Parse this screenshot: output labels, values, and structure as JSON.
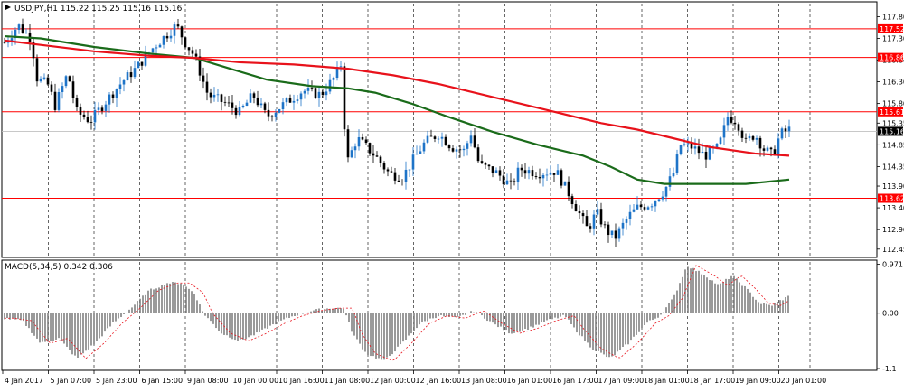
{
  "header": {
    "symbol_line": "USDJPY,H1  115.22 115.25 115.16 115.16"
  },
  "macd_label": "MACD(5,34,5) 0.342 0.306",
  "chart_data": [
    {
      "type": "candlestick",
      "symbol": "USDJPY",
      "timeframe": "H1",
      "ohlc_last": {
        "open": 115.22,
        "high": 115.25,
        "low": 115.16,
        "close": 115.16
      },
      "ylim": [
        112.3,
        118.1
      ],
      "y_ticks": [
        "117.80",
        "117.30",
        "116.80",
        "116.30",
        "115.80",
        "115.35",
        "114.85",
        "114.35",
        "113.90",
        "113.40",
        "112.90",
        "112.45"
      ],
      "price_levels": [
        {
          "value": 117.52,
          "label": "117.52",
          "color": "#ff0000"
        },
        {
          "value": 116.86,
          "label": "116.86",
          "color": "#ff0000"
        },
        {
          "value": 115.61,
          "label": "115.61",
          "color": "#ff0000"
        },
        {
          "value": 113.62,
          "label": "113.62",
          "color": "#ff0000"
        }
      ],
      "current_price": {
        "value": 115.16,
        "label": "115.16"
      },
      "x_labels": [
        "4 Jan 2017",
        "5 Jan 07:00",
        "5 Jan 23:00",
        "6 Jan 15:00",
        "9 Jan 08:00",
        "10 Jan 00:00",
        "10 Jan 16:00",
        "11 Jan 08:00",
        "12 Jan 00:00",
        "12 Jan 16:00",
        "13 Jan 08:00",
        "16 Jan 01:00",
        "16 Jan 17:00",
        "17 Jan 09:00",
        "18 Jan 01:00",
        "18 Jan 17:00",
        "19 Jan 09:00",
        "20 Jan 01:00"
      ],
      "price_path": [
        [
          0,
          117.2
        ],
        [
          15,
          117.6
        ],
        [
          30,
          117.3
        ],
        [
          35,
          116.4
        ],
        [
          50,
          116.2
        ],
        [
          55,
          115.7
        ],
        [
          70,
          116.5
        ],
        [
          80,
          115.6
        ],
        [
          95,
          115.4
        ],
        [
          110,
          115.8
        ],
        [
          130,
          116.3
        ],
        [
          145,
          116.6
        ],
        [
          165,
          117.1
        ],
        [
          190,
          117.6
        ],
        [
          200,
          117.2
        ],
        [
          210,
          116.9
        ],
        [
          225,
          116.0
        ],
        [
          245,
          115.8
        ],
        [
          260,
          115.6
        ],
        [
          275,
          116.0
        ],
        [
          290,
          115.5
        ],
        [
          310,
          115.8
        ],
        [
          330,
          116.1
        ],
        [
          350,
          116.0
        ],
        [
          365,
          116.4
        ],
        [
          372,
          116.7
        ],
        [
          375,
          115.5
        ],
        [
          380,
          114.5
        ],
        [
          390,
          115.0
        ],
        [
          410,
          114.6
        ],
        [
          425,
          114.2
        ],
        [
          440,
          114.1
        ],
        [
          455,
          114.6
        ],
        [
          465,
          114.9
        ],
        [
          480,
          115.1
        ],
        [
          495,
          114.8
        ],
        [
          510,
          114.7
        ],
        [
          515,
          115.2
        ],
        [
          525,
          114.4
        ],
        [
          545,
          114.2
        ],
        [
          560,
          113.9
        ],
        [
          570,
          114.3
        ],
        [
          590,
          114.2
        ],
        [
          610,
          114.25
        ],
        [
          625,
          113.7
        ],
        [
          635,
          113.3
        ],
        [
          645,
          112.9
        ],
        [
          655,
          113.3
        ],
        [
          665,
          112.9
        ],
        [
          675,
          112.7
        ],
        [
          690,
          113.2
        ],
        [
          700,
          113.4
        ],
        [
          715,
          113.5
        ],
        [
          730,
          113.8
        ],
        [
          740,
          114.2
        ],
        [
          748,
          114.85
        ],
        [
          760,
          114.8
        ],
        [
          775,
          114.6
        ],
        [
          790,
          114.8
        ],
        [
          800,
          115.5
        ],
        [
          810,
          115.4
        ],
        [
          820,
          114.9
        ],
        [
          830,
          115.1
        ],
        [
          840,
          114.75
        ],
        [
          850,
          114.6
        ],
        [
          858,
          115.1
        ],
        [
          868,
          115.2
        ]
      ],
      "ma_red_path": [
        [
          0,
          117.25
        ],
        [
          40,
          117.15
        ],
        [
          100,
          117.0
        ],
        [
          160,
          116.9
        ],
        [
          210,
          116.85
        ],
        [
          260,
          116.75
        ],
        [
          320,
          116.7
        ],
        [
          380,
          116.6
        ],
        [
          430,
          116.45
        ],
        [
          480,
          116.25
        ],
        [
          540,
          115.95
        ],
        [
          600,
          115.65
        ],
        [
          660,
          115.35
        ],
        [
          700,
          115.2
        ],
        [
          740,
          115.0
        ],
        [
          780,
          114.8
        ],
        [
          830,
          114.65
        ],
        [
          868,
          114.6
        ]
      ],
      "ma_green_path": [
        [
          0,
          117.35
        ],
        [
          40,
          117.3
        ],
        [
          100,
          117.1
        ],
        [
          160,
          116.95
        ],
        [
          210,
          116.85
        ],
        [
          250,
          116.6
        ],
        [
          290,
          116.35
        ],
        [
          340,
          116.2
        ],
        [
          380,
          116.15
        ],
        [
          410,
          116.05
        ],
        [
          450,
          115.8
        ],
        [
          490,
          115.5
        ],
        [
          540,
          115.15
        ],
        [
          590,
          114.85
        ],
        [
          640,
          114.6
        ],
        [
          670,
          114.35
        ],
        [
          700,
          114.05
        ],
        [
          730,
          113.95
        ],
        [
          770,
          113.95
        ],
        [
          820,
          113.95
        ],
        [
          868,
          114.05
        ]
      ]
    },
    {
      "type": "bar",
      "name": "MACD(5,34,5)",
      "values_shown": [
        0.342,
        0.306
      ],
      "ylim": [
        -1.1,
        1.0
      ],
      "y_ticks": [
        "0.971",
        "0.00",
        "-1.1"
      ],
      "histogram_path": [
        [
          0,
          -0.1
        ],
        [
          20,
          -0.15
        ],
        [
          40,
          -0.6
        ],
        [
          60,
          -0.5
        ],
        [
          80,
          -0.9
        ],
        [
          100,
          -0.6
        ],
        [
          120,
          -0.2
        ],
        [
          140,
          0.1
        ],
        [
          160,
          0.45
        ],
        [
          180,
          0.6
        ],
        [
          195,
          0.6
        ],
        [
          210,
          0.4
        ],
        [
          220,
          0.0
        ],
        [
          240,
          -0.4
        ],
        [
          260,
          -0.55
        ],
        [
          280,
          -0.4
        ],
        [
          300,
          -0.2
        ],
        [
          320,
          -0.05
        ],
        [
          340,
          0.05
        ],
        [
          360,
          0.1
        ],
        [
          375,
          0.1
        ],
        [
          385,
          -0.4
        ],
        [
          400,
          -0.8
        ],
        [
          420,
          -0.95
        ],
        [
          440,
          -0.6
        ],
        [
          460,
          -0.2
        ],
        [
          480,
          -0.05
        ],
        [
          500,
          -0.1
        ],
        [
          520,
          0.05
        ],
        [
          540,
          -0.2
        ],
        [
          560,
          -0.4
        ],
        [
          580,
          -0.3
        ],
        [
          600,
          -0.15
        ],
        [
          620,
          -0.05
        ],
        [
          630,
          -0.3
        ],
        [
          650,
          -0.7
        ],
        [
          670,
          -0.9
        ],
        [
          690,
          -0.6
        ],
        [
          710,
          -0.2
        ],
        [
          725,
          -0.05
        ],
        [
          740,
          0.3
        ],
        [
          755,
          0.95
        ],
        [
          775,
          0.75
        ],
        [
          790,
          0.55
        ],
        [
          805,
          0.75
        ],
        [
          820,
          0.5
        ],
        [
          835,
          0.2
        ],
        [
          848,
          0.15
        ],
        [
          858,
          0.25
        ],
        [
          868,
          0.34
        ]
      ]
    }
  ]
}
